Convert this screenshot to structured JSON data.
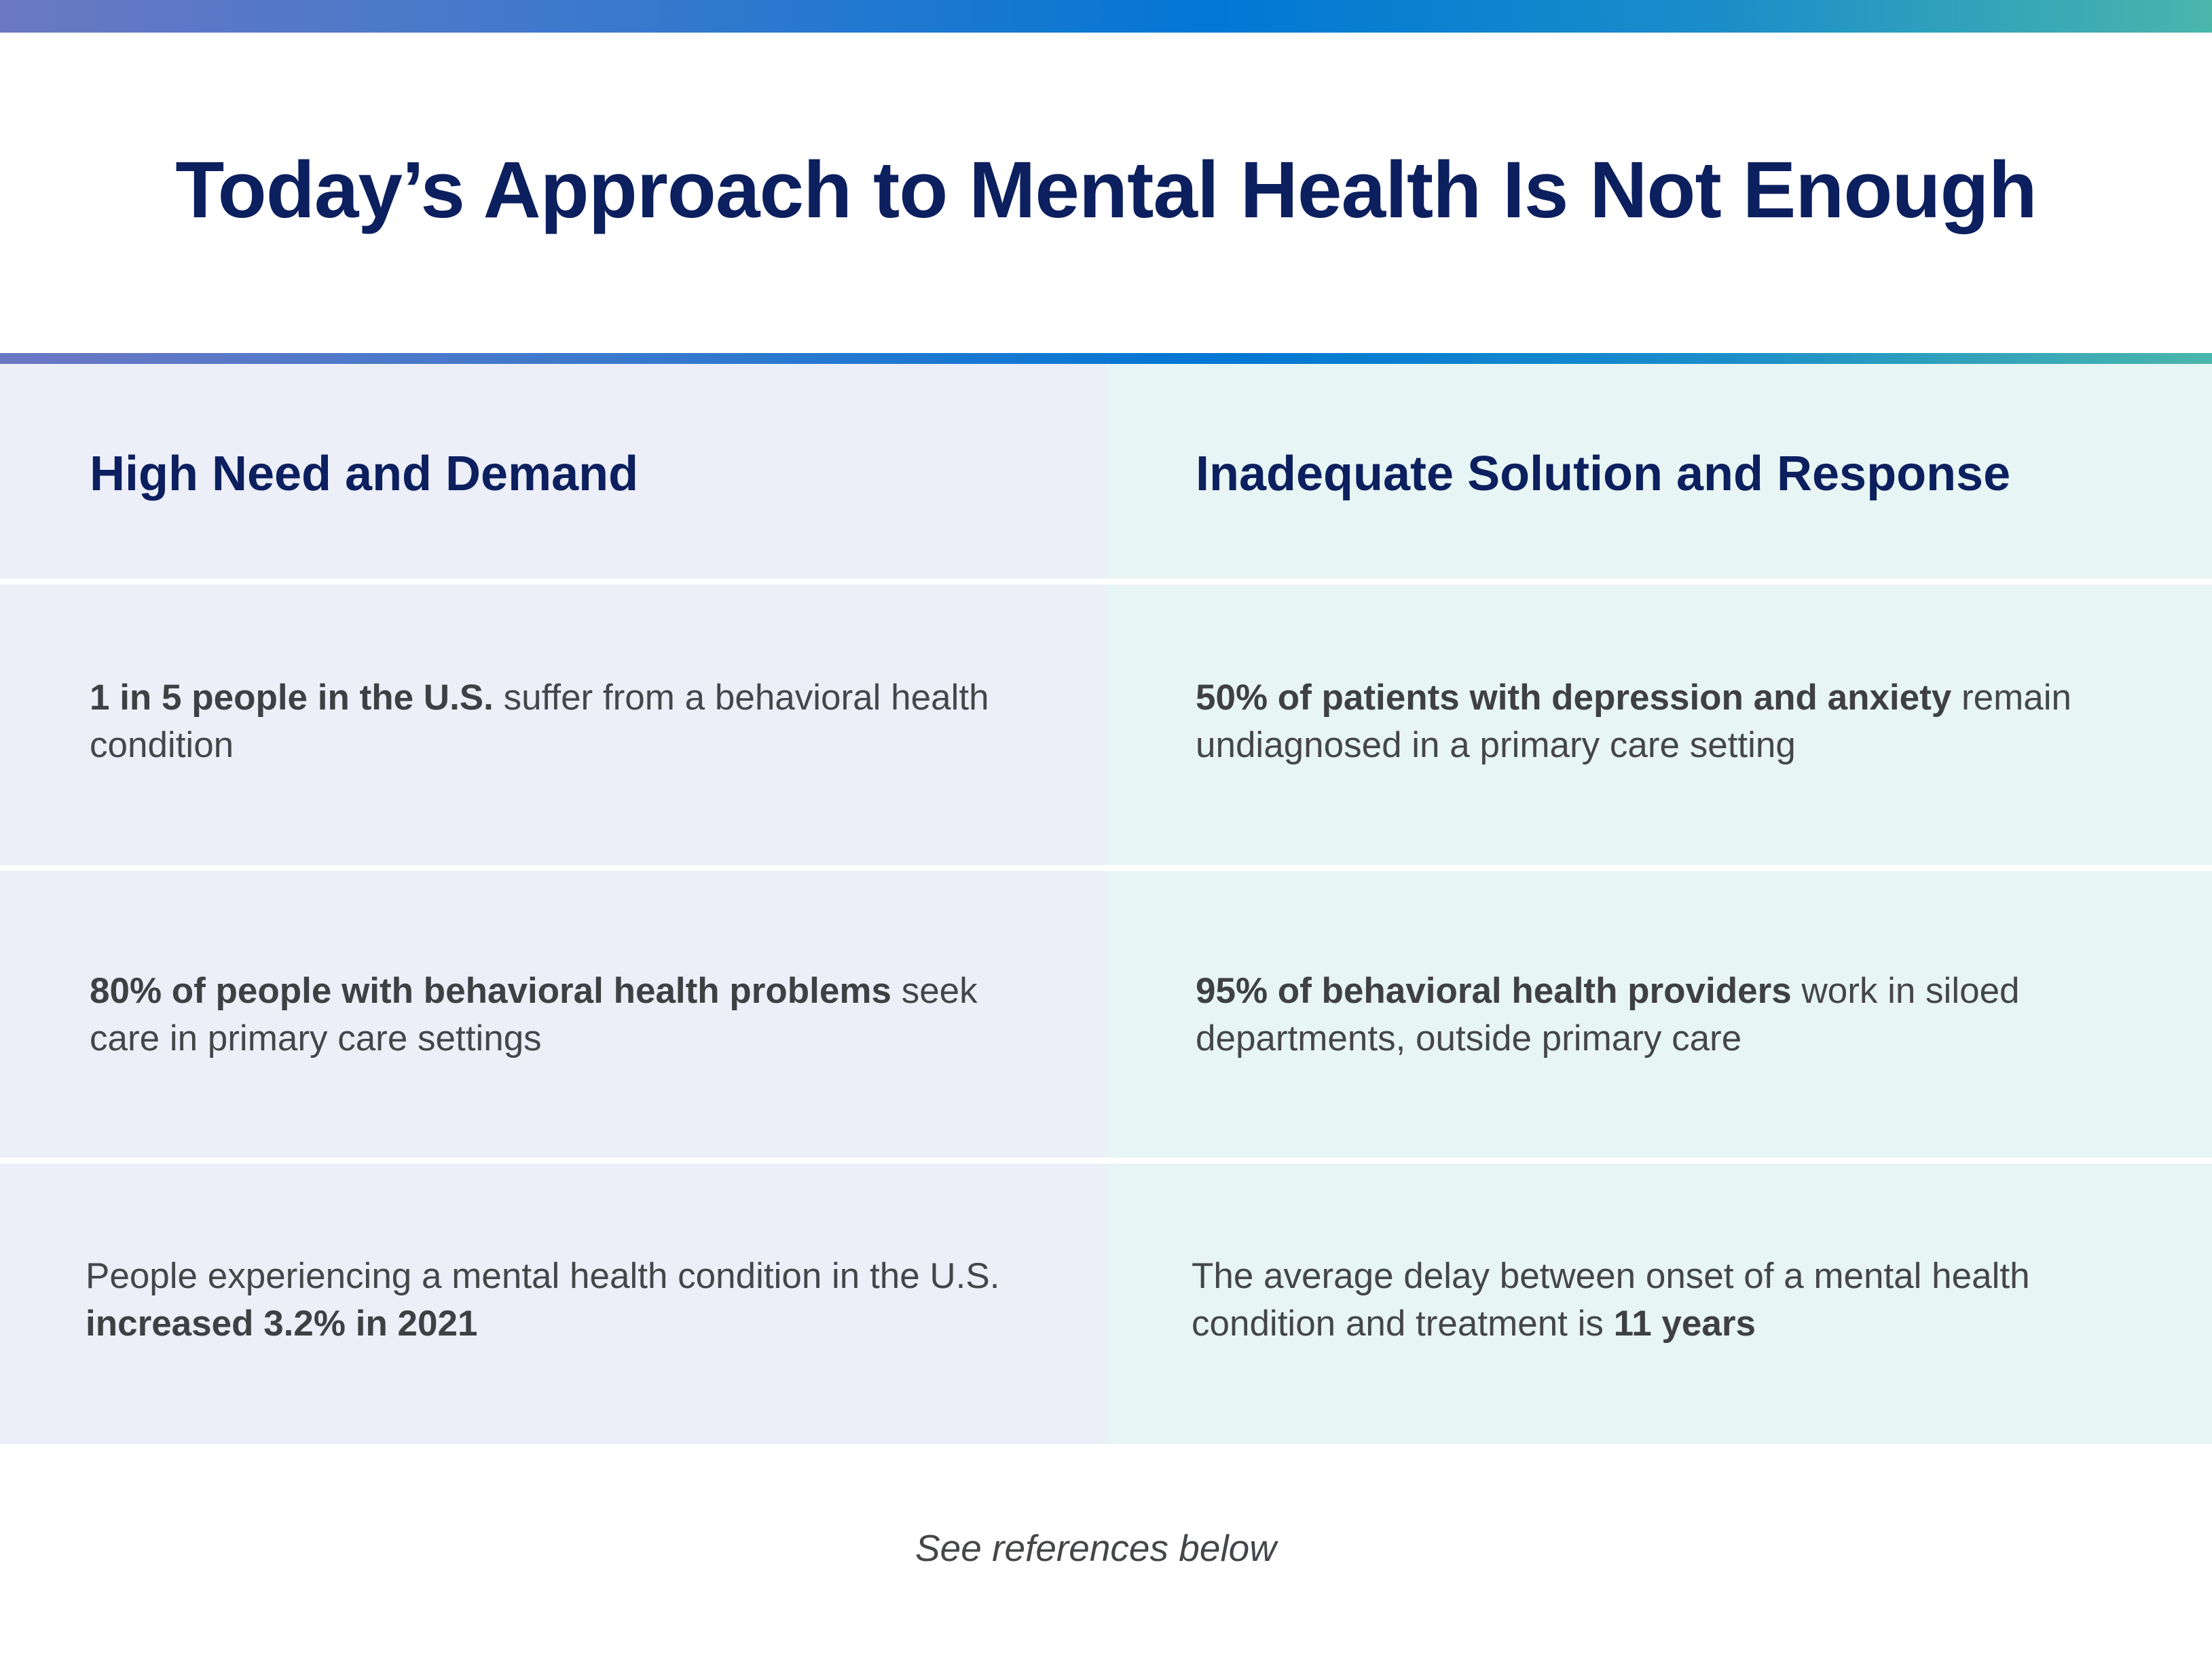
{
  "title": "Today’s Approach to Mental Health Is Not Enough",
  "columns": {
    "left": {
      "header": "High Need and Demand"
    },
    "right": {
      "header": "Inadequate Solution and Response"
    }
  },
  "rows": [
    {
      "left": {
        "bold": "1 in 5 people in the U.S.",
        "rest": " suffer from a behavioral health condition"
      },
      "right": {
        "bold": "50% of patients with depression and anxiety",
        "rest": " remain undiagnosed in a primary care setting"
      }
    },
    {
      "left": {
        "bold": "80% of people with behavioral health problems",
        "rest": " seek care in primary care settings"
      },
      "right": {
        "bold": "95% of behavioral health providers",
        "rest": " work in siloed departments, outside primary care"
      }
    },
    {
      "left": {
        "text": "People experiencing a mental health condition in the U.S. ",
        "bold": "increased 3.2% in 2021"
      },
      "right": {
        "text": "The average delay between onset of a mental health condition and treatment is ",
        "bold": "11 years"
      }
    }
  ],
  "footer": "See references below",
  "colors": {
    "title": "#0c1f5e",
    "left_column_bg": "#eceef8",
    "right_column_bg": "#e7f5f4",
    "body_text": "#444649",
    "gradient": [
      "#6b78c3",
      "#0277d4",
      "#4ab6ac"
    ]
  }
}
